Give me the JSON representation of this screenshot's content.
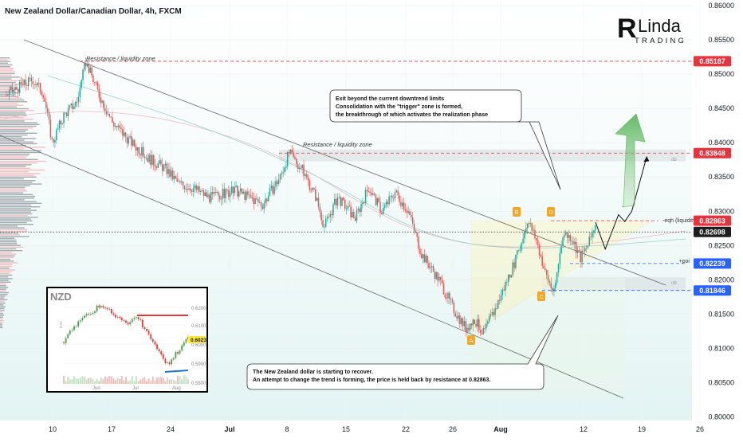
{
  "header": {
    "title": "New Zealand Dollar/Canadian Dollar, 4h, FXCM"
  },
  "logo": {
    "text_top": "Linda",
    "text_bottom": "TRADING"
  },
  "annotations": {
    "resistance_1": "Resistance / liquidity zone",
    "resistance_2": "Resistance / liquidity zone",
    "callout_top_1": "Exit beyond the current downtrend limits",
    "callout_top_2": "Consolidation with the \"trigger\" zone is formed,",
    "callout_top_3": "the breakthrough of which activates the realization phase",
    "callout_bottom_1": "The New Zealand dollar is starting to recover.",
    "callout_bottom_2": "An attempt to change the trend is forming, the price is held back by resistance at 0.82863.",
    "eqh": "-eqh (liquidity)",
    "poi": "+poi",
    "ob_1": "ob",
    "ob_2": "ob",
    "point_a": "A",
    "point_b": "B",
    "point_c": "C",
    "point_d": "D"
  },
  "inset": {
    "title": "NZD",
    "side_label": "DXY",
    "price_badge": "0.6023",
    "y_ticks": [
      "0.6200",
      "0.6100",
      "0.6000",
      "0.5900",
      "0.5800"
    ],
    "x_ticks": [
      "Jun",
      "Jul",
      "Aug"
    ]
  },
  "price_badges": [
    {
      "label": "0.85187",
      "color": "#e5343d"
    },
    {
      "label": "0.83848",
      "color": "#e5343d"
    },
    {
      "label": "0.82863",
      "color": "#e5343d"
    },
    {
      "label": "0.82698",
      "color": "#1e1e1e"
    },
    {
      "label": "0.82239",
      "color": "#2962ff"
    },
    {
      "label": "0.81846",
      "color": "#2962ff"
    }
  ],
  "chart_data": {
    "type": "candlestick",
    "symbol": "NZDCAD",
    "timeframe": "4h",
    "y_ticks": [
      "0.86000",
      "0.85500",
      "0.85000",
      "0.84500",
      "0.84000",
      "0.83500",
      "0.83000",
      "0.82500",
      "0.82000",
      "0.81500",
      "0.81000",
      "0.80500",
      "0.80000"
    ],
    "ylim": [
      0.7995,
      0.8608
    ],
    "x_ticks": [
      "10",
      "17",
      "24",
      "Jul",
      "8",
      "15",
      "22",
      "26",
      "Aug",
      "12",
      "19",
      "26"
    ],
    "close_path": [
      {
        "d": 0,
        "p": 0.847
      },
      {
        "d": 3,
        "p": 0.8492
      },
      {
        "d": 4.2,
        "p": 0.8472
      },
      {
        "d": 5.2,
        "p": 0.84
      },
      {
        "d": 6.5,
        "p": 0.844
      },
      {
        "d": 8,
        "p": 0.846
      },
      {
        "d": 9,
        "p": 0.8518
      },
      {
        "d": 10.5,
        "p": 0.847
      },
      {
        "d": 12,
        "p": 0.843
      },
      {
        "d": 14,
        "p": 0.8402
      },
      {
        "d": 16,
        "p": 0.8378
      },
      {
        "d": 18,
        "p": 0.8362
      },
      {
        "d": 19.5,
        "p": 0.834
      },
      {
        "d": 21,
        "p": 0.8335
      },
      {
        "d": 23,
        "p": 0.832
      },
      {
        "d": 26,
        "p": 0.833
      },
      {
        "d": 29,
        "p": 0.831
      },
      {
        "d": 31,
        "p": 0.835
      },
      {
        "d": 32,
        "p": 0.8385
      },
      {
        "d": 33.5,
        "p": 0.836
      },
      {
        "d": 35,
        "p": 0.8322
      },
      {
        "d": 36,
        "p": 0.8278
      },
      {
        "d": 37.5,
        "p": 0.832
      },
      {
        "d": 39.5,
        "p": 0.829
      },
      {
        "d": 41,
        "p": 0.8335
      },
      {
        "d": 42.5,
        "p": 0.83
      },
      {
        "d": 44,
        "p": 0.8328
      },
      {
        "d": 45.5,
        "p": 0.83
      },
      {
        "d": 47,
        "p": 0.8238
      },
      {
        "d": 49,
        "p": 0.82
      },
      {
        "d": 50.5,
        "p": 0.816
      },
      {
        "d": 52,
        "p": 0.813
      },
      {
        "d": 53,
        "p": 0.8142
      },
      {
        "d": 54,
        "p": 0.8122
      },
      {
        "d": 55.5,
        "p": 0.8162
      },
      {
        "d": 57,
        "p": 0.821
      },
      {
        "d": 58,
        "p": 0.824
      },
      {
        "d": 59,
        "p": 0.8288
      },
      {
        "d": 60,
        "p": 0.8258
      },
      {
        "d": 61,
        "p": 0.821
      },
      {
        "d": 62,
        "p": 0.818
      },
      {
        "d": 63,
        "p": 0.8268
      },
      {
        "d": 64,
        "p": 0.8262
      },
      {
        "d": 65,
        "p": 0.8232
      },
      {
        "d": 66,
        "p": 0.8255
      },
      {
        "d": 66.7,
        "p": 0.8284
      }
    ],
    "projection": [
      {
        "d": 66.7,
        "p": 0.8284
      },
      {
        "d": 67.8,
        "p": 0.8245
      },
      {
        "d": 69.3,
        "p": 0.8295
      },
      {
        "d": 70,
        "p": 0.8285
      },
      {
        "d": 70.8,
        "p": 0.83
      },
      {
        "d": 72.5,
        "p": 0.838
      }
    ],
    "levels": [
      {
        "name": "resistance_high",
        "price": 0.85187
      },
      {
        "name": "resistance_zone",
        "price": 0.83848
      },
      {
        "name": "eqh_liquidity",
        "price": 0.82863
      },
      {
        "name": "current_price",
        "price": 0.82698
      },
      {
        "name": "poi",
        "price": 0.82239
      },
      {
        "name": "ob_low",
        "price": 0.81846
      }
    ]
  }
}
